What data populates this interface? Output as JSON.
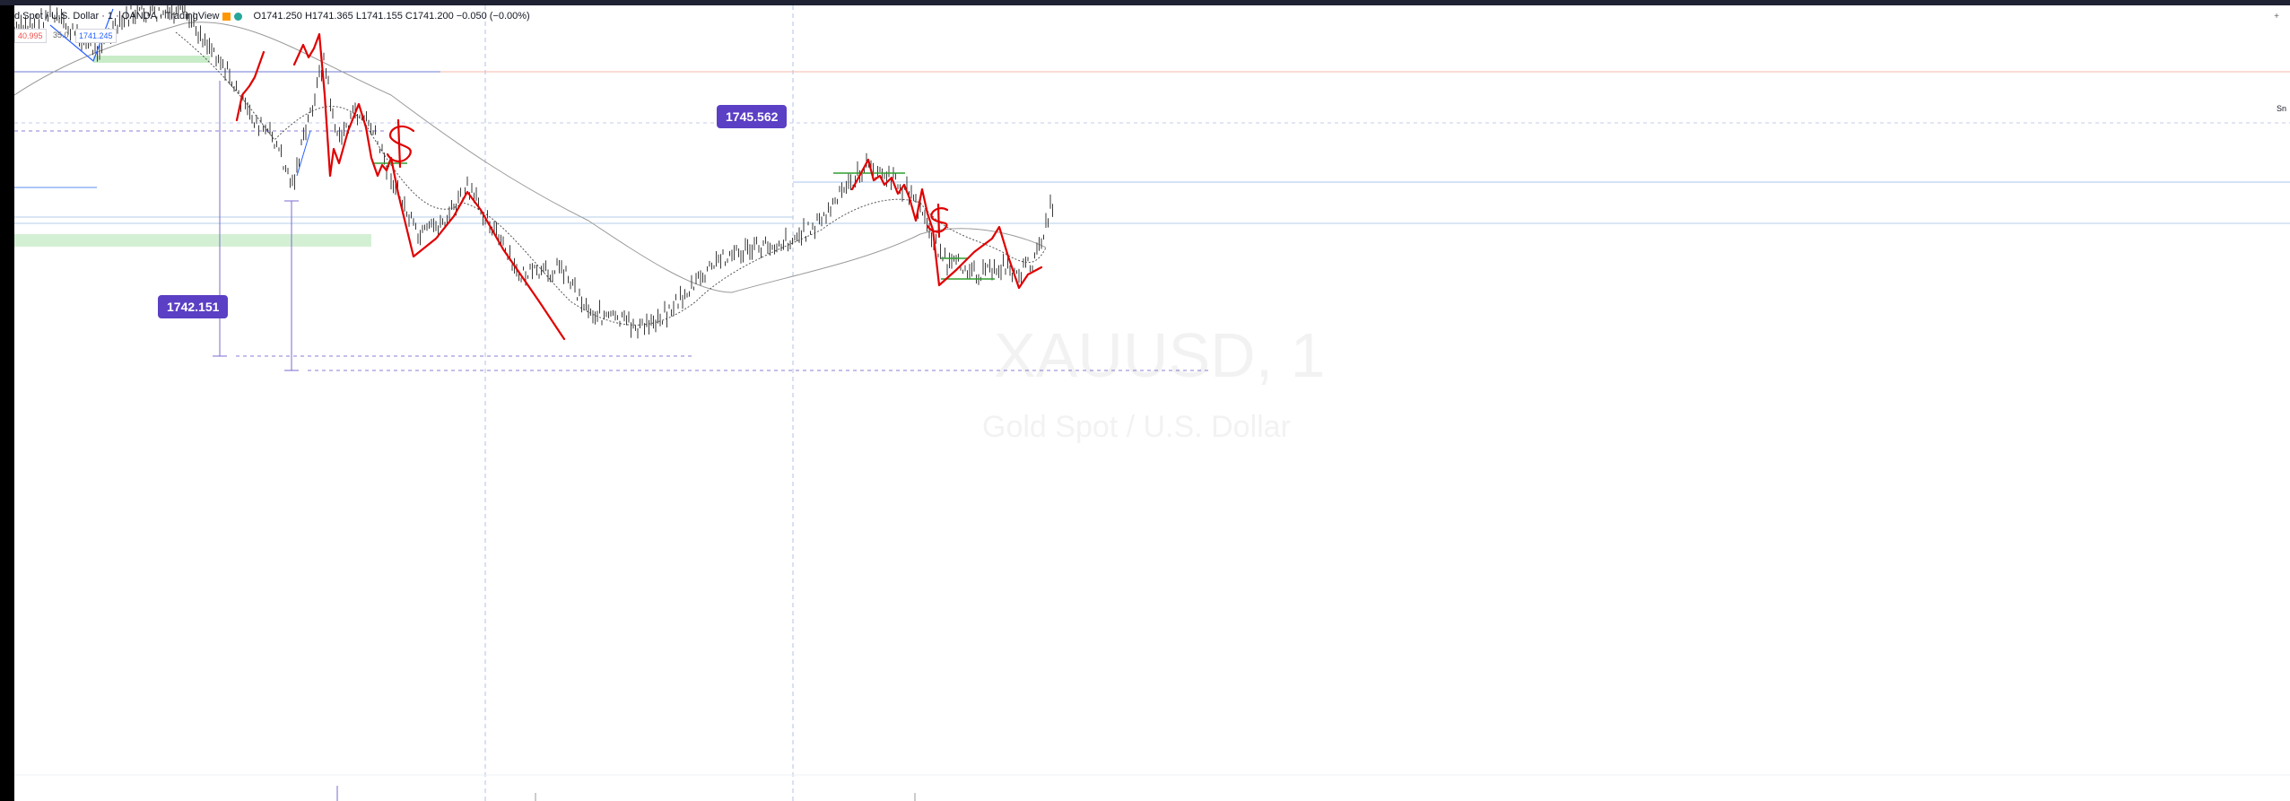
{
  "header": {
    "symbol_title": "d Spot / U.S. Dollar · 1 · OANDA · TradingView",
    "ohlc": "O1741.250 H1741.365 L1741.155 C1741.200 −0.050 (−0.00%)",
    "sell_price": "40.995",
    "spread": "35.0",
    "buy_price": "1741.245"
  },
  "price_labels": {
    "upper": "1745.562",
    "lower": "1742.151"
  },
  "watermark": {
    "symbol": "XAUUSD, 1",
    "description": "Gold Spot / U.S. Dollar"
  },
  "right_edge_label": "Sn",
  "colors": {
    "background": "#ffffff",
    "price_badge": "#5b3fc4",
    "candle": "#131722",
    "drawing_red": "#e00000",
    "zone_green": "#c8ecc8",
    "level_blue": "#5b8def"
  },
  "icons": {
    "corner": "chart-settings-icon"
  }
}
